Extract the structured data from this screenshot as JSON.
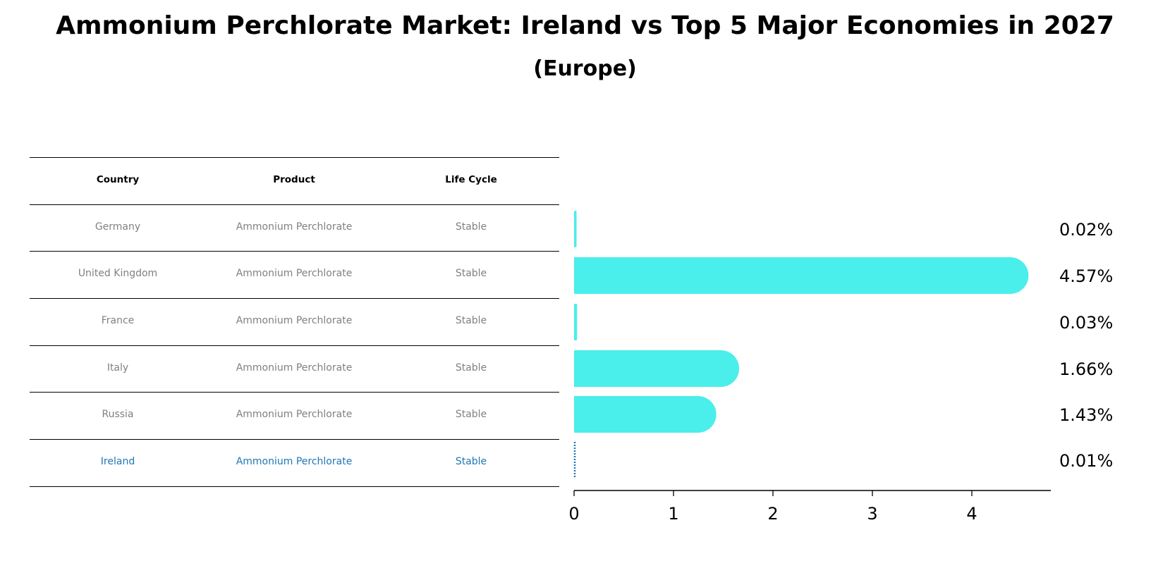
{
  "title": "Ammonium Perchlorate Market: Ireland vs Top 5 Major Economies in 2027",
  "subtitle": "(Europe)",
  "table": {
    "headers": [
      "Country",
      "Product",
      "Life Cycle"
    ],
    "rows": [
      {
        "country": "Germany",
        "product": "Ammonium Perchlorate",
        "life_cycle": "Stable"
      },
      {
        "country": "United Kingdom",
        "product": "Ammonium Perchlorate",
        "life_cycle": "Stable"
      },
      {
        "country": "France",
        "product": "Ammonium Perchlorate",
        "life_cycle": "Stable"
      },
      {
        "country": "Italy",
        "product": "Ammonium Perchlorate",
        "life_cycle": "Stable"
      },
      {
        "country": "Russia",
        "product": "Ammonium Perchlorate",
        "life_cycle": "Stable"
      },
      {
        "country": "Ireland",
        "product": "Ammonium Perchlorate",
        "life_cycle": "Stable"
      }
    ]
  },
  "colors": {
    "bar": "#4aeeea",
    "highlight": "#1f77b4",
    "gray": "#808080"
  },
  "chart_data": {
    "type": "bar",
    "orientation": "horizontal",
    "categories": [
      "Germany",
      "United Kingdom",
      "France",
      "Italy",
      "Russia",
      "Ireland"
    ],
    "values": [
      0.02,
      4.57,
      0.03,
      1.66,
      1.43,
      0.01
    ],
    "labels": [
      "0.02%",
      "4.57%",
      "0.03%",
      "1.66%",
      "1.43%",
      "0.01%"
    ],
    "highlight": "Ireland",
    "xlim": [
      0,
      4.8
    ],
    "xticks": [
      0,
      1,
      2,
      3,
      4
    ],
    "xtick_labels": [
      "0",
      "1",
      "2",
      "3",
      "4"
    ],
    "grid": false
  }
}
